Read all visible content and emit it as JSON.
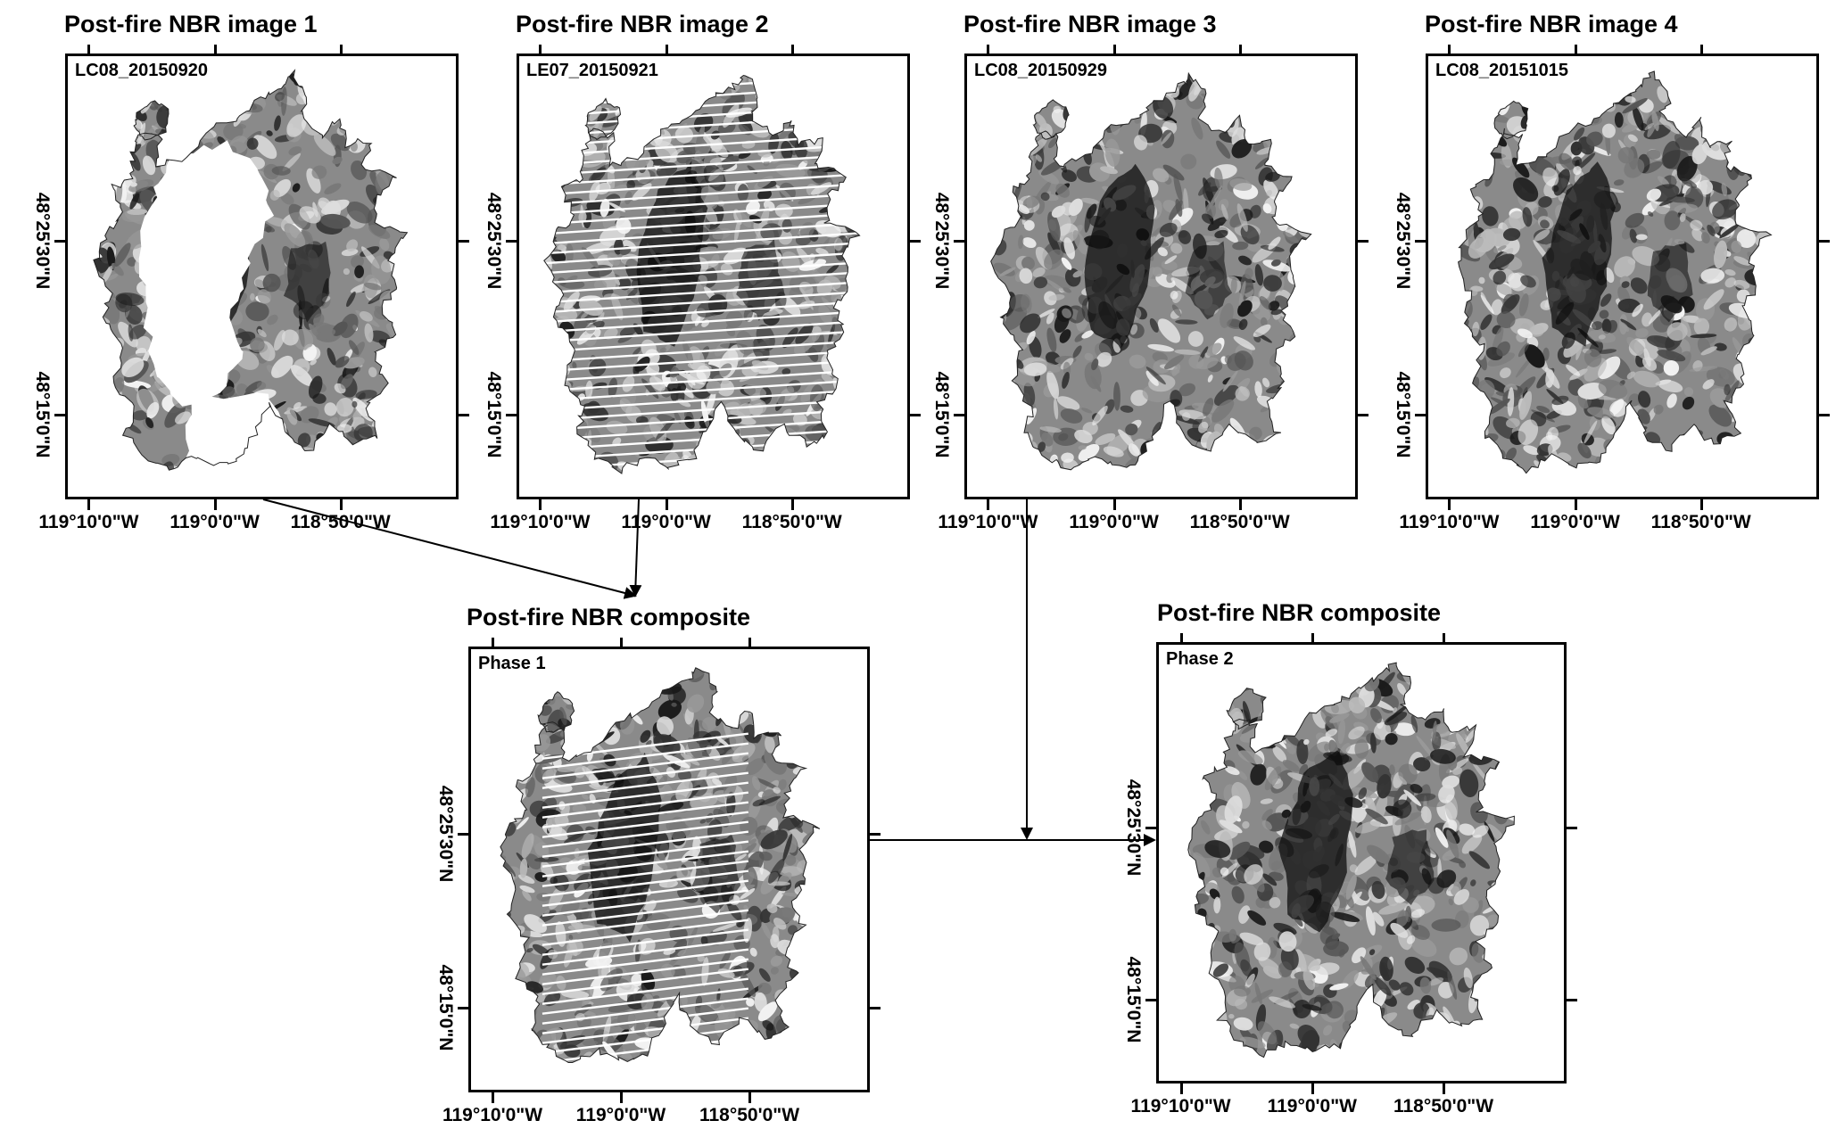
{
  "panels": [
    {
      "title": "Post-fire NBR image 1",
      "label": "LC08_20150920",
      "style": "partial"
    },
    {
      "title": "Post-fire NBR image 2",
      "label": "LE07_20150921",
      "style": "striped"
    },
    {
      "title": "Post-fire NBR image 3",
      "label": "LC08_20150929",
      "style": "full"
    },
    {
      "title": "Post-fire NBR image 4",
      "label": "LC08_20151015",
      "style": "full"
    },
    {
      "title": "Post-fire NBR composite",
      "label": "Phase 1",
      "style": "composite1"
    },
    {
      "title": "Post-fire NBR composite",
      "label": "Phase 2",
      "style": "full"
    }
  ],
  "axes": {
    "x_ticks": [
      "119°10'0\"W",
      "119°0'0\"W",
      "118°50'0\"W"
    ],
    "y_ticks": [
      "48°25'30\"N",
      "48°15'0\"N"
    ]
  }
}
